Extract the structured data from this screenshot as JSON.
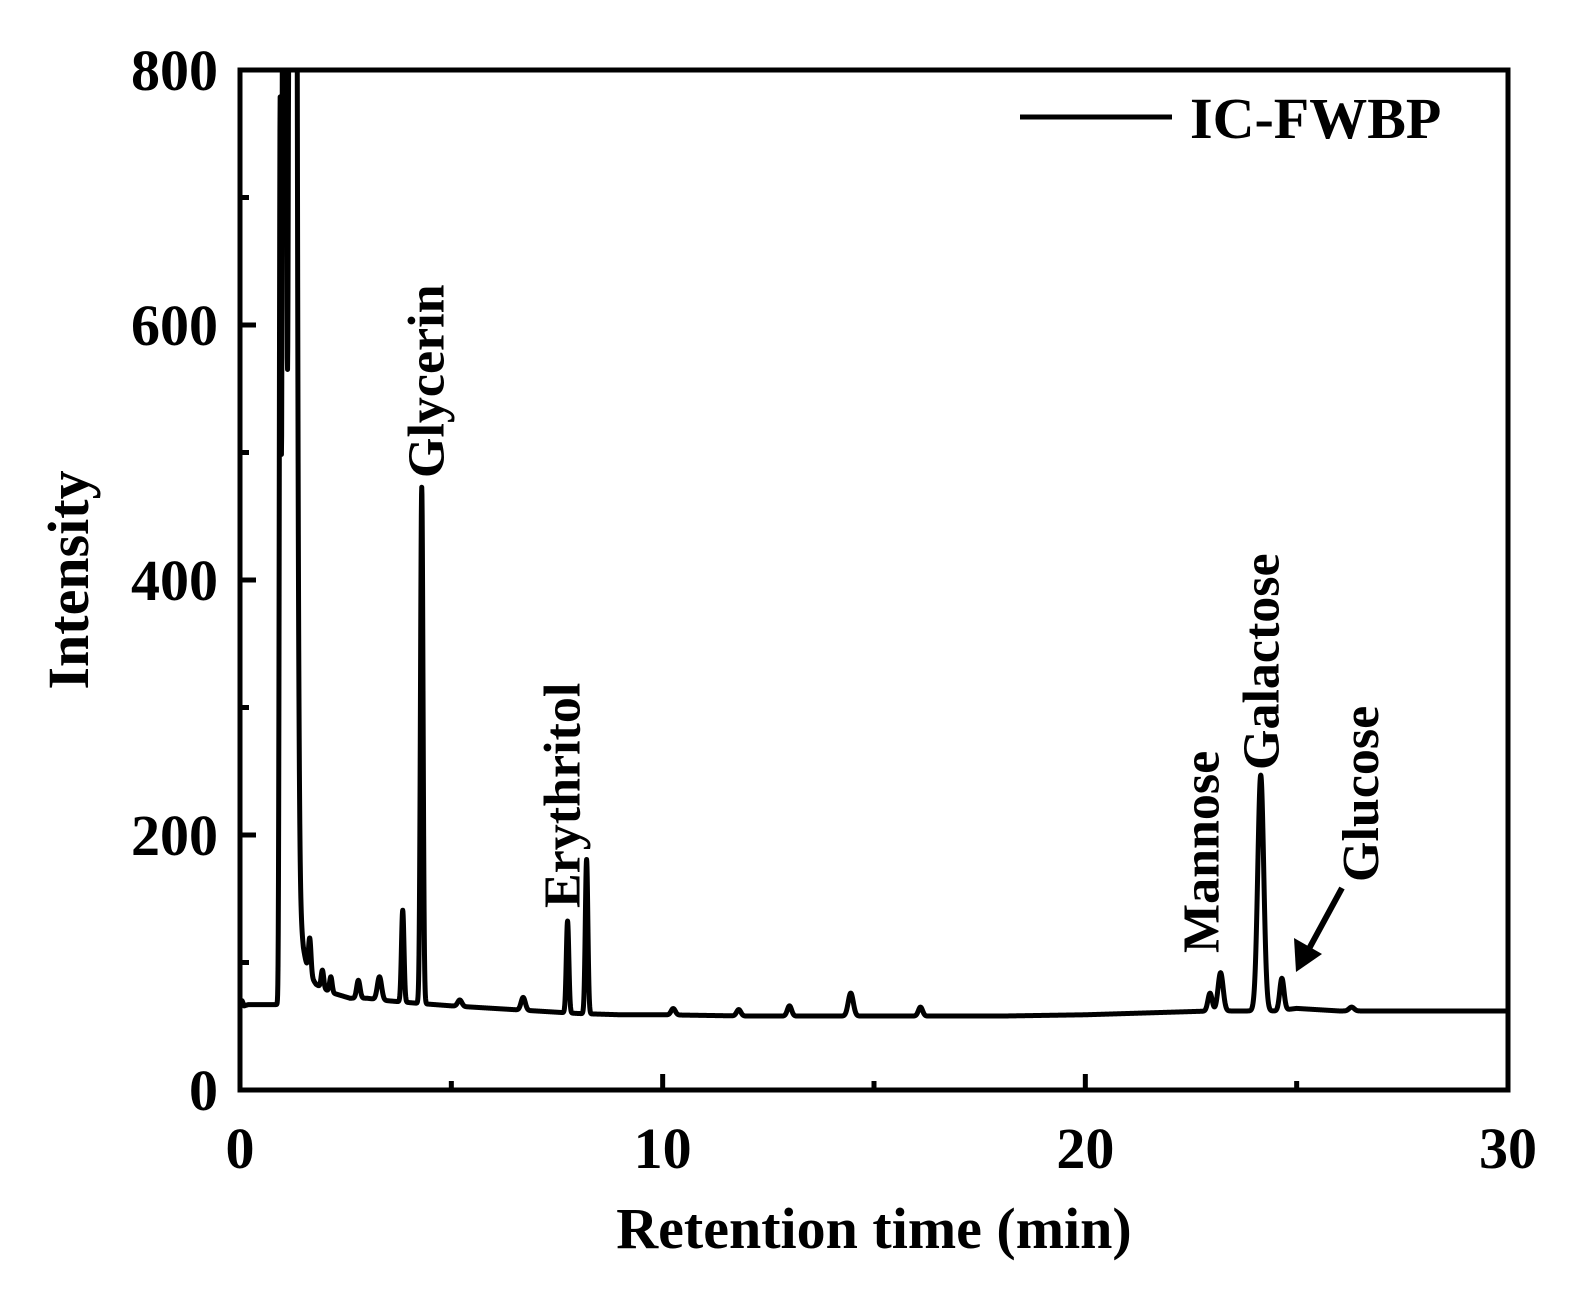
{
  "chart_data": {
    "type": "line",
    "title": "",
    "xlabel": "Retention time (min)",
    "ylabel": "Intensity",
    "xlim": [
      0,
      30
    ],
    "ylim": [
      0,
      800
    ],
    "xticks": [
      0,
      10,
      20,
      30
    ],
    "xtick_labels": [
      "0",
      "10",
      "20",
      "30"
    ],
    "yticks": [
      0,
      200,
      400,
      600,
      800
    ],
    "ytick_labels": [
      "0",
      "200",
      "400",
      "600",
      "800"
    ],
    "grid": false,
    "legend_position": "top-right",
    "series": [
      {
        "name": "IC-FWBP",
        "color": "#000000",
        "baseline": [
          [
            0.0,
            68
          ],
          [
            0.05,
            70
          ],
          [
            0.1,
            66
          ],
          [
            0.2,
            67
          ],
          [
            0.5,
            67
          ],
          [
            0.9,
            67
          ],
          [
            1.4,
            120
          ],
          [
            1.5,
            100
          ],
          [
            1.6,
            90
          ],
          [
            1.8,
            82
          ],
          [
            2.2,
            76
          ],
          [
            2.6,
            72
          ],
          [
            3.0,
            72
          ],
          [
            3.5,
            70
          ],
          [
            4.2,
            68
          ],
          [
            5.0,
            66
          ],
          [
            6.0,
            64
          ],
          [
            7.0,
            62
          ],
          [
            8.0,
            60
          ],
          [
            9.0,
            59
          ],
          [
            10.0,
            59
          ],
          [
            12.0,
            58
          ],
          [
            14.0,
            58
          ],
          [
            16.0,
            58
          ],
          [
            18.0,
            58
          ],
          [
            20.0,
            59
          ],
          [
            22.0,
            61
          ],
          [
            23.0,
            62
          ],
          [
            23.8,
            62
          ],
          [
            24.5,
            62
          ],
          [
            25.0,
            64
          ],
          [
            26.0,
            62
          ],
          [
            27.0,
            62
          ],
          [
            30.0,
            62
          ]
        ],
        "peaks": [
          {
            "x": 0.95,
            "height": 695,
            "width": 0.02
          },
          {
            "x": 1.05,
            "height": 3000,
            "width": 0.03
          },
          {
            "x": 1.25,
            "height": 3000,
            "width": 0.06
          },
          {
            "x": 1.65,
            "height": 28,
            "width": 0.03
          },
          {
            "x": 1.95,
            "height": 14,
            "width": 0.03
          },
          {
            "x": 2.15,
            "height": 12,
            "width": 0.03
          },
          {
            "x": 2.8,
            "height": 14,
            "width": 0.04
          },
          {
            "x": 3.3,
            "height": 18,
            "width": 0.05
          },
          {
            "x": 3.85,
            "height": 72,
            "width": 0.03
          },
          {
            "x": 4.3,
            "height": 405,
            "width": 0.03
          },
          {
            "x": 5.2,
            "height": 5,
            "width": 0.05
          },
          {
            "x": 6.7,
            "height": 10,
            "width": 0.05
          },
          {
            "x": 7.75,
            "height": 72,
            "width": 0.03
          },
          {
            "x": 8.2,
            "height": 121,
            "width": 0.03
          },
          {
            "x": 10.25,
            "height": 5,
            "width": 0.05
          },
          {
            "x": 11.8,
            "height": 5,
            "width": 0.05
          },
          {
            "x": 13.0,
            "height": 8,
            "width": 0.05
          },
          {
            "x": 14.45,
            "height": 18,
            "width": 0.06
          },
          {
            "x": 16.1,
            "height": 7,
            "width": 0.05
          },
          {
            "x": 22.95,
            "height": 14,
            "width": 0.05
          },
          {
            "x": 23.2,
            "height": 30,
            "width": 0.06
          },
          {
            "x": 24.15,
            "height": 185,
            "width": 0.07
          },
          {
            "x": 24.65,
            "height": 25,
            "width": 0.05
          },
          {
            "x": 26.3,
            "height": 3,
            "width": 0.06
          }
        ]
      }
    ],
    "annotations": [
      {
        "text": "Glycerin",
        "x": 4.3
      },
      {
        "text": "Erythritol",
        "x": 7.75
      },
      {
        "text": "Mannose",
        "x": 23.2
      },
      {
        "text": "Galactose",
        "x": 24.15
      },
      {
        "text": "Glucose",
        "x": 24.8,
        "arrow": true
      }
    ]
  }
}
